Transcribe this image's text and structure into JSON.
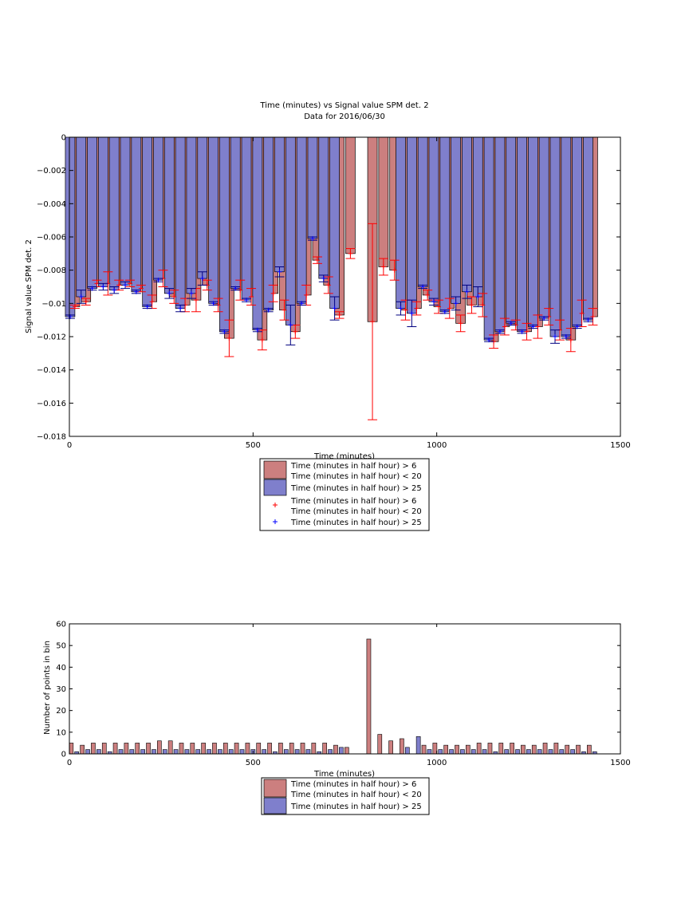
{
  "chart_data": [
    {
      "type": "bar",
      "title": "Time (minutes) vs Signal value SPM det. 2",
      "subtitle": "Data for 2016/06/30",
      "xlabel": "Time (minutes)",
      "ylabel": "Signal value SPM det. 2",
      "xlim": [
        0,
        1500
      ],
      "ylim": [
        -0.018,
        0
      ],
      "xticks": [
        "0",
        "500",
        "1000",
        "1500"
      ],
      "yticks": [
        "0",
        "−0.002",
        "−0.004",
        "−0.006",
        "−0.008",
        "−0.01",
        "−0.012",
        "−0.014",
        "−0.016",
        "−0.018"
      ],
      "grid": false,
      "legend_position": "below",
      "legend": [
        {
          "kind": "bar",
          "color": "#cc7f7f",
          "line1": "Time (minutes in half hour) > 6",
          "line2": "Time (minutes in half hour) < 20"
        },
        {
          "kind": "bar",
          "color": "#7f7fcc",
          "line1": "Time (minutes in half hour) > 25",
          "line2": ""
        },
        {
          "kind": "marker",
          "color": "#ff0000",
          "line1": "Time (minutes in half hour) > 6",
          "line2": "Time (minutes in half hour) < 20"
        },
        {
          "kind": "marker",
          "color": "#0000ff",
          "line1": "Time (minutes in half hour) > 25",
          "line2": ""
        }
      ],
      "series": [
        {
          "name": "Time (minutes in half hour) > 6, Time (minutes in half hour) < 20",
          "color": "#cc7f7f",
          "points": [
            [
              15,
              -0.0102,
              0.0001
            ],
            [
              45,
              -0.0099,
              0.0002
            ],
            [
              75,
              -0.0088,
              0.0002
            ],
            [
              105,
              -0.0088,
              0.0007
            ],
            [
              135,
              -0.0089,
              0.0003
            ],
            [
              165,
              -0.0088,
              0.0002
            ],
            [
              195,
              -0.0091,
              0.0002
            ],
            [
              225,
              -0.0099,
              0.0004
            ],
            [
              255,
              -0.0085,
              0.0005
            ],
            [
              285,
              -0.0096,
              0.0004
            ],
            [
              315,
              -0.0101,
              0.0004
            ],
            [
              345,
              -0.0098,
              0.0007
            ],
            [
              375,
              -0.0089,
              0.0003
            ],
            [
              405,
              -0.0101,
              0.0004
            ],
            [
              435,
              -0.0121,
              0.0011
            ],
            [
              465,
              -0.0092,
              0.0006
            ],
            [
              495,
              -0.0096,
              0.0005
            ],
            [
              525,
              -0.0122,
              0.0006
            ],
            [
              555,
              -0.0094,
              0.0005
            ],
            [
              585,
              -0.0104,
              0.0006
            ],
            [
              615,
              -0.0117,
              0.0004
            ],
            [
              645,
              -0.0095,
              0.0006
            ],
            [
              675,
              -0.0074,
              0.0002
            ],
            [
              705,
              -0.0089,
              0.0005
            ],
            [
              735,
              -0.0107,
              0.0002
            ],
            [
              765,
              -0.007,
              0.0003
            ],
            [
              825,
              -0.0111,
              0.0059
            ],
            [
              855,
              -0.0078,
              0.0005
            ],
            [
              885,
              -0.008,
              0.0006
            ],
            [
              915,
              -0.0104,
              0.0006
            ],
            [
              945,
              -0.0103,
              0.0004
            ],
            [
              975,
              -0.0095,
              0.0003
            ],
            [
              1005,
              -0.0102,
              0.0004
            ],
            [
              1035,
              -0.0103,
              0.0006
            ],
            [
              1065,
              -0.0112,
              0.0005
            ],
            [
              1095,
              -0.0101,
              0.0005
            ],
            [
              1125,
              -0.0101,
              0.0007
            ],
            [
              1155,
              -0.0123,
              0.0004
            ],
            [
              1185,
              -0.0114,
              0.0005
            ],
            [
              1215,
              -0.0113,
              0.0003
            ],
            [
              1245,
              -0.0117,
              0.0005
            ],
            [
              1275,
              -0.0114,
              0.0007
            ],
            [
              1305,
              -0.0108,
              0.0005
            ],
            [
              1335,
              -0.0116,
              0.0006
            ],
            [
              1365,
              -0.0122,
              0.0007
            ],
            [
              1395,
              -0.0106,
              0.0008
            ],
            [
              1425,
              -0.0108,
              0.0005
            ]
          ]
        },
        {
          "name": "Time (minutes in half hour) > 25",
          "color": "#7f7fcc",
          "points": [
            [
              2,
              -0.0108,
              0.0001
            ],
            [
              32,
              -0.0096,
              0.0004
            ],
            [
              62,
              -0.0091,
              0.0001
            ],
            [
              92,
              -0.009,
              0.0002
            ],
            [
              122,
              -0.0092,
              0.0002
            ],
            [
              152,
              -0.0089,
              0.0002
            ],
            [
              182,
              -0.0093,
              0.0001
            ],
            [
              212,
              -0.0102,
              0.0001
            ],
            [
              242,
              -0.0086,
              0.0001
            ],
            [
              272,
              -0.0094,
              0.0003
            ],
            [
              302,
              -0.0103,
              0.0002
            ],
            [
              332,
              -0.0094,
              0.0003
            ],
            [
              362,
              -0.0085,
              0.0004
            ],
            [
              392,
              -0.01,
              0.0001
            ],
            [
              422,
              -0.0117,
              0.0001
            ],
            [
              452,
              -0.0091,
              0.0001
            ],
            [
              482,
              -0.0098,
              0.0001
            ],
            [
              512,
              -0.0116,
              0.0001
            ],
            [
              542,
              -0.0104,
              0.0001
            ],
            [
              572,
              -0.0081,
              0.0003
            ],
            [
              602,
              -0.0113,
              0.0012
            ],
            [
              632,
              -0.01,
              0.0001
            ],
            [
              662,
              -0.0061,
              0.0001
            ],
            [
              692,
              -0.0085,
              0.0002
            ],
            [
              722,
              -0.0103,
              0.0007
            ],
            [
              902,
              -0.0103,
              0.0004
            ],
            [
              932,
              -0.0106,
              0.0008
            ],
            [
              962,
              -0.009,
              0.0001
            ],
            [
              992,
              -0.0099,
              0.0002
            ],
            [
              1022,
              -0.0105,
              0.0001
            ],
            [
              1052,
              -0.01,
              0.0004
            ],
            [
              1082,
              -0.0093,
              0.0004
            ],
            [
              1112,
              -0.0096,
              0.0006
            ],
            [
              1142,
              -0.0122,
              0.0001
            ],
            [
              1172,
              -0.0117,
              0.0001
            ],
            [
              1202,
              -0.0112,
              0.0001
            ],
            [
              1232,
              -0.0117,
              0.0001
            ],
            [
              1262,
              -0.0114,
              0.0001
            ],
            [
              1292,
              -0.0109,
              0.0001
            ],
            [
              1322,
              -0.012,
              0.0004
            ],
            [
              1352,
              -0.012,
              0.0001
            ],
            [
              1382,
              -0.0114,
              0.0001
            ],
            [
              1412,
              -0.011,
              0.0001
            ]
          ]
        }
      ]
    },
    {
      "type": "bar",
      "title": "",
      "xlabel": "Time (minutes)",
      "ylabel": "Number of points in bin",
      "xlim": [
        0,
        1500
      ],
      "ylim": [
        0,
        60
      ],
      "xticks": [
        "0",
        "500",
        "1000",
        "1500"
      ],
      "yticks": [
        "0",
        "10",
        "20",
        "30",
        "40",
        "50",
        "60"
      ],
      "grid": false,
      "legend_position": "below",
      "legend": [
        {
          "kind": "bar",
          "color": "#cc7f7f",
          "line1": "Time (minutes in half hour) > 6",
          "line2": "Time (minutes in half hour) < 20"
        },
        {
          "kind": "bar",
          "color": "#7f7fcc",
          "line1": "Time (minutes in half hour) > 25",
          "line2": ""
        }
      ],
      "series": [
        {
          "name": "Time (minutes in half hour) > 6, Time (minutes in half hour) < 20",
          "color": "#cc7f7f",
          "points": [
            [
              5,
              5
            ],
            [
              35,
              4
            ],
            [
              65,
              5
            ],
            [
              95,
              5
            ],
            [
              125,
              5
            ],
            [
              155,
              5
            ],
            [
              185,
              5
            ],
            [
              215,
              5
            ],
            [
              245,
              6
            ],
            [
              275,
              6
            ],
            [
              305,
              5
            ],
            [
              335,
              5
            ],
            [
              365,
              5
            ],
            [
              395,
              5
            ],
            [
              425,
              5
            ],
            [
              455,
              5
            ],
            [
              485,
              5
            ],
            [
              515,
              5
            ],
            [
              545,
              5
            ],
            [
              575,
              5
            ],
            [
              605,
              5
            ],
            [
              635,
              5
            ],
            [
              665,
              5
            ],
            [
              695,
              5
            ],
            [
              725,
              4
            ],
            [
              755,
              3
            ],
            [
              815,
              53
            ],
            [
              845,
              9
            ],
            [
              875,
              6
            ],
            [
              905,
              7
            ],
            [
              965,
              4
            ],
            [
              995,
              5
            ],
            [
              1025,
              4
            ],
            [
              1055,
              4
            ],
            [
              1085,
              4
            ],
            [
              1115,
              5
            ],
            [
              1145,
              5
            ],
            [
              1175,
              5
            ],
            [
              1205,
              5
            ],
            [
              1235,
              4
            ],
            [
              1265,
              4
            ],
            [
              1295,
              5
            ],
            [
              1325,
              5
            ],
            [
              1355,
              4
            ],
            [
              1385,
              4
            ],
            [
              1415,
              4
            ]
          ]
        },
        {
          "name": "Time (minutes in half hour) > 25",
          "color": "#7f7fcc",
          "points": [
            [
              20,
              1
            ],
            [
              50,
              2
            ],
            [
              80,
              2
            ],
            [
              110,
              1
            ],
            [
              140,
              2
            ],
            [
              170,
              2
            ],
            [
              200,
              2
            ],
            [
              230,
              2
            ],
            [
              260,
              2
            ],
            [
              290,
              2
            ],
            [
              320,
              2
            ],
            [
              350,
              2
            ],
            [
              380,
              2
            ],
            [
              410,
              2
            ],
            [
              440,
              2
            ],
            [
              470,
              2
            ],
            [
              500,
              2
            ],
            [
              530,
              2
            ],
            [
              560,
              1
            ],
            [
              590,
              2
            ],
            [
              620,
              2
            ],
            [
              650,
              2
            ],
            [
              680,
              1
            ],
            [
              710,
              2
            ],
            [
              740,
              3
            ],
            [
              920,
              3
            ],
            [
              950,
              8
            ],
            [
              980,
              2
            ],
            [
              1010,
              2
            ],
            [
              1040,
              2
            ],
            [
              1070,
              2
            ],
            [
              1100,
              2
            ],
            [
              1130,
              2
            ],
            [
              1160,
              1
            ],
            [
              1190,
              2
            ],
            [
              1220,
              2
            ],
            [
              1250,
              2
            ],
            [
              1280,
              2
            ],
            [
              1310,
              2
            ],
            [
              1340,
              2
            ],
            [
              1370,
              2
            ],
            [
              1400,
              1
            ],
            [
              1430,
              1
            ]
          ]
        }
      ]
    }
  ]
}
